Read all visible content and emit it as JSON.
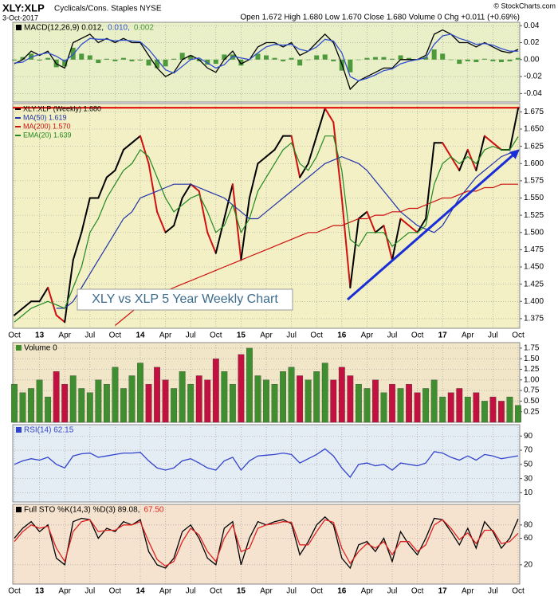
{
  "header": {
    "title": "XLY:XLP",
    "subtitle": "Cyclicals/Cons. Staples NYSE",
    "date": "3-Oct-2017",
    "quote": "Open 1.672 High 1.680 Low 1.670 Close 1.680 Volume 0 Chg +0.011 (+0.69%)",
    "credit": "© StockCharts.com"
  },
  "chart_data": [
    {
      "type": "line",
      "background": "#e9efc6",
      "legend": "inline",
      "grid": true,
      "ylim": [
        -0.05,
        0.044
      ],
      "yticks": [
        -0.04,
        -0.02,
        {
          "value": 0,
          "label": "0.00"
        },
        0.02,
        0.04
      ],
      "series": [
        {
          "name": "MACD(12,26,9) 0.012,",
          "type": "line",
          "color": "#000000",
          "values": [
            -0.005,
            0,
            0.01,
            0.005,
            0.01,
            -0.005,
            -0.01,
            0.02,
            0.025,
            0.03,
            0.02,
            0.025,
            0.02,
            0.025,
            0.02,
            0.02,
            0.005,
            -0.01,
            -0.02,
            -0.015,
            0,
            0.005,
            0,
            -0.01,
            -0.015,
            0,
            0.01,
            -0.005,
            0,
            0.015,
            0.02,
            0.02,
            0.015,
            0.02,
            0.005,
            0.01,
            0.02,
            0.03,
            0.02,
            -0.005,
            -0.035,
            -0.025,
            -0.02,
            -0.015,
            -0.01,
            -0.01,
            0,
            0,
            0,
            0.005,
            0.03,
            0.035,
            0.03,
            0.02,
            0.02,
            0.015,
            0.02,
            0.015,
            0.01,
            0.008,
            0.012
          ]
        },
        {
          "name": "0.010,",
          "type": "line",
          "color": "#3050d0",
          "values": [
            -0.004,
            -0.003,
            0.003,
            0.006,
            0.008,
            0.004,
            -0.002,
            0.006,
            0.018,
            0.025,
            0.024,
            0.024,
            0.022,
            0.023,
            0.022,
            0.021,
            0.012,
            0,
            -0.012,
            -0.016,
            -0.008,
            0,
            0.002,
            -0.004,
            -0.01,
            -0.006,
            0.004,
            0.002,
            0,
            0.008,
            0.015,
            0.018,
            0.017,
            0.018,
            0.012,
            0.01,
            0.015,
            0.024,
            0.022,
            0.008,
            -0.02,
            -0.025,
            -0.022,
            -0.018,
            -0.013,
            -0.011,
            -0.005,
            -0.002,
            0,
            0.002,
            0.018,
            0.028,
            0.03,
            0.025,
            0.022,
            0.018,
            0.019,
            0.017,
            0.013,
            0.01,
            0.01
          ]
        },
        {
          "name": "0.002",
          "type": "bar",
          "color": "#4c9a3c",
          "values": [
            -0.001,
            0.003,
            0.007,
            -0.001,
            0.002,
            -0.009,
            -0.008,
            0.014,
            0.007,
            0.005,
            -0.004,
            0.001,
            -0.002,
            0.002,
            -0.002,
            -0.001,
            -0.007,
            -0.01,
            -0.008,
            0.001,
            0.008,
            0.005,
            -0.002,
            -0.006,
            -0.005,
            0.006,
            0.006,
            -0.007,
            0,
            0.007,
            0.005,
            0.002,
            -0.002,
            0.002,
            -0.007,
            0,
            0.005,
            0.006,
            -0.002,
            -0.013,
            -0.015,
            0,
            0.002,
            0.003,
            0.003,
            0.001,
            0.005,
            0.002,
            0,
            0.003,
            0.012,
            0.007,
            0,
            -0.005,
            -0.002,
            -0.003,
            0.001,
            -0.002,
            -0.003,
            -0.002,
            0.002
          ]
        }
      ]
    },
    {
      "type": "line",
      "background": "#f2f0c4",
      "legend": "vertical",
      "grid": true,
      "hline": 1.681,
      "hline_color": "#e00000",
      "annotation": "XLY vs XLP 5 Year Weekly Chart",
      "categories": [
        "Oct",
        null,
        null,
        "13",
        null,
        null,
        "Apr",
        null,
        null,
        "Jul",
        null,
        null,
        "Oct",
        null,
        null,
        "14",
        null,
        null,
        "Apr",
        null,
        null,
        "Jul",
        null,
        null,
        "Oct",
        null,
        null,
        "15",
        null,
        null,
        "Apr",
        null,
        null,
        "Jul",
        null,
        null,
        "Oct",
        null,
        null,
        "16",
        null,
        null,
        "Apr",
        null,
        null,
        "Jul",
        null,
        null,
        "Oct",
        null,
        null,
        "17",
        null,
        null,
        "Apr",
        null,
        null,
        "Jul",
        null,
        null,
        "Oct"
      ],
      "ylim": [
        1.361,
        1.687
      ],
      "yticks": [
        1.375,
        {
          "value": 1.4,
          "label": "1.400"
        },
        1.425,
        {
          "value": 1.45,
          "label": "1.450"
        },
        1.475,
        {
          "value": 1.5,
          "label": "1.500"
        },
        1.525,
        {
          "value": 1.55,
          "label": "1.550"
        },
        1.575,
        {
          "value": 1.6,
          "label": "1.600"
        },
        1.625,
        {
          "value": 1.65,
          "label": "1.650"
        },
        1.675
      ],
      "series": [
        {
          "name": "XLY:XLP (Weekly) 1.680",
          "type": "line",
          "color": "#000000",
          "down_color": "#d01010",
          "values": [
            1.38,
            1.39,
            1.4,
            1.4,
            1.42,
            1.38,
            1.37,
            1.46,
            1.5,
            1.55,
            1.55,
            1.58,
            1.59,
            1.62,
            1.63,
            1.64,
            1.6,
            1.53,
            1.5,
            1.51,
            1.55,
            1.57,
            1.56,
            1.5,
            1.47,
            1.52,
            1.57,
            1.46,
            1.55,
            1.6,
            1.61,
            1.62,
            1.64,
            1.64,
            1.58,
            1.6,
            1.64,
            1.68,
            1.66,
            1.55,
            1.42,
            1.52,
            1.53,
            1.5,
            1.51,
            1.46,
            1.52,
            1.51,
            1.5,
            1.52,
            1.63,
            1.63,
            1.61,
            1.59,
            1.62,
            1.59,
            1.64,
            1.63,
            1.62,
            1.62,
            1.68
          ]
        },
        {
          "name": "MA(50) 1.619",
          "type": "line",
          "color": "#2233aa",
          "values": [
            null,
            null,
            null,
            null,
            null,
            1.39,
            1.39,
            1.4,
            1.42,
            1.44,
            1.46,
            1.48,
            1.5,
            1.52,
            1.53,
            1.55,
            1.555,
            1.56,
            1.565,
            1.57,
            1.57,
            1.57,
            1.565,
            1.56,
            1.555,
            1.55,
            1.54,
            1.53,
            1.52,
            1.52,
            1.53,
            1.54,
            1.55,
            1.56,
            1.57,
            1.58,
            1.59,
            1.6,
            1.605,
            1.61,
            1.605,
            1.6,
            1.59,
            1.575,
            1.56,
            1.545,
            1.53,
            1.52,
            1.51,
            1.505,
            1.5,
            1.51,
            1.53,
            1.55,
            1.565,
            1.58,
            1.59,
            1.6,
            1.61,
            1.615,
            1.619
          ]
        },
        {
          "name": "MA(200) 1.570",
          "type": "line",
          "color": "#cc1111",
          "values": [
            null,
            null,
            null,
            null,
            null,
            null,
            null,
            null,
            null,
            null,
            null,
            null,
            1.365,
            1.375,
            1.385,
            1.395,
            1.4,
            1.41,
            1.415,
            1.42,
            1.425,
            1.43,
            1.435,
            1.44,
            1.445,
            1.45,
            1.455,
            1.46,
            1.465,
            1.47,
            1.475,
            1.48,
            1.485,
            1.49,
            1.495,
            1.5,
            1.5,
            1.505,
            1.51,
            1.51,
            1.515,
            1.52,
            1.52,
            1.525,
            1.525,
            1.53,
            1.53,
            1.535,
            1.535,
            1.54,
            1.545,
            1.55,
            1.55,
            1.555,
            1.56,
            1.56,
            1.565,
            1.565,
            1.57,
            1.57,
            1.57
          ]
        },
        {
          "name": "EMA(20) 1.639",
          "type": "line",
          "color": "#228822",
          "values": [
            1.37,
            1.38,
            1.39,
            1.395,
            1.4,
            1.395,
            1.39,
            1.42,
            1.45,
            1.5,
            1.52,
            1.55,
            1.57,
            1.59,
            1.6,
            1.62,
            1.61,
            1.58,
            1.55,
            1.53,
            1.54,
            1.55,
            1.555,
            1.53,
            1.5,
            1.51,
            1.54,
            1.5,
            1.52,
            1.56,
            1.58,
            1.6,
            1.62,
            1.63,
            1.6,
            1.59,
            1.61,
            1.64,
            1.64,
            1.59,
            1.49,
            1.48,
            1.5,
            1.5,
            1.5,
            1.48,
            1.49,
            1.5,
            1.5,
            1.51,
            1.57,
            1.6,
            1.61,
            1.6,
            1.61,
            1.6,
            1.62,
            1.625,
            1.62,
            1.62,
            1.639
          ]
        }
      ]
    },
    {
      "type": "bar",
      "background": "#f1e6c8",
      "legend": "inline",
      "grid": true,
      "ylim": [
        0,
        1.88
      ],
      "yticks": [
        0.25,
        {
          "value": 0.5,
          "label": "0.50"
        },
        0.75,
        {
          "value": 1,
          "label": "1.00"
        },
        1.25,
        {
          "value": 1.5,
          "label": "1.50"
        },
        1.75
      ],
      "series": [
        {
          "name": "Volume 0",
          "type": "bar",
          "color": "#000000",
          "up_color": "#3f8f30",
          "down_color": "#c21040",
          "values": [
            0.9,
            0.7,
            0.8,
            1.0,
            0.6,
            1.2,
            0.9,
            1.1,
            0.8,
            0.7,
            1.0,
            0.9,
            1.3,
            0.8,
            1.1,
            1.4,
            0.9,
            1.3,
            1.0,
            0.8,
            1.2,
            0.9,
            1.1,
            1.0,
            1.5,
            1.2,
            0.9,
            1.6,
            1.75,
            1.1,
            1.0,
            0.9,
            1.2,
            1.3,
            1.1,
            1.0,
            1.2,
            1.4,
            1.0,
            1.3,
            1.1,
            0.9,
            0.8,
            1.0,
            0.7,
            0.9,
            0.8,
            0.9,
            0.7,
            0.8,
            1.0,
            0.6,
            0.7,
            0.8,
            0.6,
            0.7,
            0.5,
            0.6,
            0.5,
            0.6,
            0.4
          ]
        }
      ]
    },
    {
      "type": "line",
      "background": "#e4ecf4",
      "legend": "inline",
      "grid": true,
      "ylim": [
        -3,
        106
      ],
      "yticks": [
        10,
        30,
        50,
        70,
        90
      ],
      "series": [
        {
          "name": "RSI(14) 62.15",
          "type": "line",
          "color": "#3344cc",
          "values": [
            50,
            55,
            58,
            56,
            60,
            50,
            45,
            62,
            65,
            66,
            60,
            62,
            64,
            66,
            66,
            67,
            55,
            45,
            42,
            45,
            55,
            58,
            52,
            45,
            42,
            55,
            60,
            42,
            55,
            62,
            63,
            64,
            66,
            64,
            52,
            58,
            64,
            72,
            62,
            45,
            32,
            50,
            52,
            48,
            50,
            42,
            52,
            50,
            48,
            52,
            68,
            66,
            60,
            56,
            62,
            56,
            64,
            62,
            58,
            60,
            62.15
          ]
        }
      ]
    },
    {
      "type": "line",
      "background": "#f5e3cf",
      "legend": "inline",
      "grid": true,
      "categories": [
        "Oct",
        null,
        null,
        "13",
        null,
        null,
        "Apr",
        null,
        null,
        "Jul",
        null,
        null,
        "Oct",
        null,
        null,
        "14",
        null,
        null,
        "Apr",
        null,
        null,
        "Jul",
        null,
        null,
        "Oct",
        null,
        null,
        "15",
        null,
        null,
        "Apr",
        null,
        null,
        "Jul",
        null,
        null,
        "Oct",
        null,
        null,
        "16",
        null,
        null,
        "Apr",
        null,
        null,
        "Jul",
        null,
        null,
        "Oct",
        null,
        null,
        "17",
        null,
        null,
        "Apr",
        null,
        null,
        "Jul",
        null,
        null,
        "Oct"
      ],
      "ylim": [
        -9,
        111
      ],
      "yticks": [
        20,
        60,
        80
      ],
      "series": [
        {
          "name": "Full STO %K(14,3) %D(3) 89.08,",
          "type": "line",
          "color": "#000000",
          "values": [
            60,
            75,
            85,
            70,
            80,
            30,
            20,
            85,
            90,
            88,
            60,
            75,
            70,
            85,
            80,
            88,
            40,
            20,
            15,
            30,
            70,
            80,
            60,
            30,
            20,
            75,
            85,
            20,
            60,
            85,
            80,
            85,
            88,
            82,
            35,
            55,
            80,
            92,
            80,
            30,
            15,
            50,
            55,
            40,
            60,
            25,
            70,
            50,
            35,
            60,
            90,
            88,
            70,
            50,
            75,
            45,
            85,
            70,
            45,
            60,
            89.08
          ]
        },
        {
          "name": "67.50",
          "type": "line",
          "color": "#dd2222",
          "values": [
            55,
            70,
            80,
            75,
            78,
            45,
            25,
            70,
            85,
            88,
            70,
            72,
            72,
            80,
            80,
            85,
            55,
            28,
            18,
            25,
            55,
            75,
            65,
            40,
            25,
            60,
            80,
            40,
            45,
            75,
            80,
            82,
            85,
            84,
            50,
            50,
            70,
            88,
            84,
            45,
            22,
            40,
            52,
            45,
            55,
            35,
            55,
            55,
            40,
            50,
            80,
            88,
            75,
            58,
            68,
            52,
            72,
            72,
            52,
            55,
            67.5
          ]
        }
      ]
    }
  ]
}
